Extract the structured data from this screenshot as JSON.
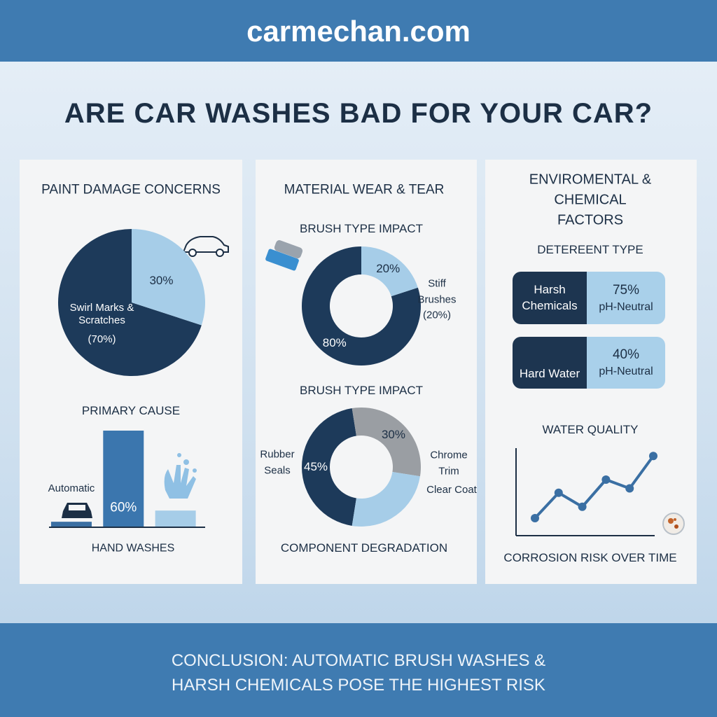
{
  "header": "carmechan.com",
  "title": "ARE CAR WASHES BAD FOR YOUR CAR?",
  "panels": [
    {
      "title": "PAINT DAMAGE CONCERNS"
    },
    {
      "title": "MATERIAL WEAR & TEAR"
    },
    {
      "title": "ENVIROMENTAL & CHEMICAL FACTORS"
    }
  ],
  "chart_data": [
    {
      "type": "pie",
      "categories": [
        "Swirl Marks & Scratches",
        null
      ],
      "values": [
        70,
        30
      ],
      "value_labels": [
        "(70%)",
        "30%"
      ],
      "colors": [
        "#1d3a5a",
        "#a6cde8"
      ]
    },
    {
      "type": "bar",
      "title": "PRIMARY CAUSE",
      "x_label": "HAND WASHES",
      "categories": [
        "Automatic",
        null,
        null
      ],
      "values": [
        3,
        60,
        10
      ],
      "value_labels": [
        null,
        "60%",
        null
      ],
      "colors": [
        "#3a6fa3",
        "#3b76ae",
        "#a6cde8"
      ]
    },
    {
      "type": "donut",
      "title": "BRUSH TYPE IMPACT",
      "categories": [
        null,
        "Stiff Brushes (20%)"
      ],
      "values": [
        80,
        20
      ],
      "value_labels": [
        "80%",
        "20%"
      ],
      "colors": [
        "#1d3a5a",
        "#a6cde8"
      ]
    },
    {
      "type": "donut",
      "title": "BRUSH TYPE IMPACT",
      "x_label": "COMPONENT DEGRADATION",
      "categories": [
        "Rubber Seals",
        "Chrome Trim",
        "Clear Coat"
      ],
      "values": [
        45,
        30,
        25
      ],
      "value_labels": [
        "45%",
        "30%",
        null
      ],
      "colors": [
        "#1d3a5a",
        "#9a9ea3",
        "#a6cde8"
      ]
    },
    {
      "type": "line",
      "title": "WATER QUALITY",
      "x_label": "CORROSION RISK OVER TIME",
      "categories": [
        null,
        null,
        null,
        null,
        null,
        null
      ],
      "values": [
        20,
        49,
        33,
        64,
        54,
        91
      ],
      "ylim": [
        0,
        100
      ],
      "color": "#3a6fa3"
    }
  ],
  "detergent": {
    "title": "DETEREENT TYPE",
    "rows": [
      {
        "label": "Harsh Chemicals",
        "value": "75%",
        "sublabel": "pH-Neutral"
      },
      {
        "label": "Hard Water",
        "value": "40%",
        "sublabel": "pH-Neutral"
      }
    ]
  },
  "conclusion": "CONCLUSION: AUTOMATIC BRUSH WASHES & HARSH CHEMICALS POSE THE HIGHEST RISK"
}
